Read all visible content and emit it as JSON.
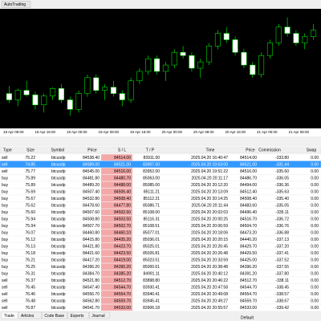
{
  "toolbar": {
    "button": "AutoTrading"
  },
  "chart": {
    "type": "candlestick",
    "ylim": [
      83800,
      85600
    ],
    "x_labels": [
      "18 Apr 08:00",
      "18 Apr 16:00",
      "19 Apr 00:00",
      "19 Apr 08:00",
      "19 Apr 16:00",
      "20 Apr 00:00",
      "20 Apr 08:00",
      "20 Apr 16:00",
      "21 Apr 00:00",
      "21 Apr 08:00"
    ],
    "candles": [
      [
        84300,
        84420,
        84150,
        84200
      ],
      [
        84200,
        84380,
        84100,
        84350
      ],
      [
        84350,
        84500,
        84250,
        84280
      ],
      [
        84280,
        84330,
        84050,
        84120
      ],
      [
        84120,
        84300,
        84000,
        84260
      ],
      [
        84260,
        84400,
        84200,
        84380
      ],
      [
        84380,
        84450,
        84150,
        84200
      ],
      [
        84200,
        84250,
        83950,
        84050
      ],
      [
        84050,
        84350,
        84000,
        84300
      ],
      [
        84300,
        84600,
        84250,
        84550
      ],
      [
        84550,
        84600,
        84300,
        84350
      ],
      [
        84350,
        84450,
        84200,
        84400
      ],
      [
        84400,
        84500,
        84250,
        84300
      ],
      [
        84300,
        84350,
        84100,
        84200
      ],
      [
        84200,
        84550,
        84150,
        84500
      ],
      [
        84500,
        84700,
        84450,
        84650
      ],
      [
        84650,
        84900,
        84600,
        84850
      ],
      [
        84850,
        84900,
        84600,
        84650
      ],
      [
        84650,
        84800,
        84500,
        84750
      ],
      [
        84750,
        85000,
        84700,
        84950
      ],
      [
        84950,
        85050,
        84850,
        84900
      ],
      [
        84900,
        84950,
        84650,
        84700
      ],
      [
        84700,
        84850,
        84550,
        84800
      ],
      [
        84800,
        85100,
        84750,
        85050
      ],
      [
        85050,
        85300,
        85000,
        85250
      ],
      [
        85250,
        85350,
        85100,
        85150
      ],
      [
        85150,
        85200,
        84900,
        84950
      ],
      [
        84950,
        85000,
        84700,
        84750
      ],
      [
        84750,
        84800,
        84550,
        84600
      ],
      [
        84600,
        84950,
        84550,
        84900
      ],
      [
        84900,
        85150,
        84850,
        85100
      ],
      [
        85100,
        85400,
        85050,
        85350
      ],
      [
        85350,
        85500,
        85200,
        85250
      ],
      [
        85250,
        85300,
        85050,
        85100
      ],
      [
        85100,
        85250,
        85000,
        85200
      ],
      [
        85200,
        85400,
        85150,
        85300
      ]
    ]
  },
  "table": {
    "columns": [
      "Type",
      "Size",
      "Symbol",
      "Price",
      "S / L",
      "T / P",
      "Time",
      "Price",
      "Commission",
      "Swap"
    ],
    "rows": [
      [
        "sell",
        "75.22",
        "btcusdp",
        "84538.40",
        "84514.00",
        "83911.00",
        "2025.04.20 16:40:47",
        "84514.00",
        "-333.80",
        "0.00"
      ],
      [
        "sell",
        "74.85",
        "btcusdp",
        "84589.00",
        "84521.00",
        "83907.00",
        "2025.04.20 19:53:00",
        "84521.00",
        "-331.44",
        "0.00"
      ],
      [
        "sell",
        "75.77",
        "btcusdp",
        "84545.00",
        "84516.00",
        "83952.00",
        "2025.04.20 19:51:22",
        "84516.00",
        "-335.60",
        "0.00"
      ],
      [
        "buy",
        "75.89",
        "btcusdp",
        "84481.80",
        "84480.70",
        "85063.00",
        "2025.04.20 20:11:17",
        "84486.70",
        "-336.05",
        "0.00"
      ],
      [
        "buy",
        "75.89",
        "btcusdp",
        "84489.20",
        "84488.00",
        "85085.00",
        "2025.04.20 20:12:20",
        "84494.00",
        "-336.36",
        "0.00"
      ],
      [
        "buy",
        "75.69",
        "btcusdp",
        "84507.40",
        "84506.40",
        "85111.21",
        "2025.04.20 20:13:09",
        "84512.40",
        "-335.63",
        "0.00"
      ],
      [
        "buy",
        "75.67",
        "btcusdp",
        "84532.80",
        "84508.40",
        "85112.21",
        "2025.04.20 20:14:25",
        "84508.40",
        "-335.40",
        "0.00"
      ],
      [
        "buy",
        "75.62",
        "btcusdp",
        "84478.60",
        "84477.80",
        "85086.71",
        "2025.04.20 20:11:44",
        "84483.60",
        "-335.05",
        "0.00"
      ],
      [
        "buy",
        "75.60",
        "btcusdp",
        "84507.60",
        "84502.60",
        "85108.00",
        "2025.04.20 20:02:03",
        "84496.40",
        "-335.11",
        "0.00"
      ],
      [
        "buy",
        "75.94",
        "btcusdp",
        "84508.80",
        "84503.50",
        "85116.31",
        "2025.04.20 20:00:25",
        "84516.70",
        "-336.72",
        "0.00"
      ],
      [
        "buy",
        "75.94",
        "btcusdp",
        "84507.70",
        "84502.70",
        "85108.51",
        "2025.04.20 20:06:59",
        "84504.70",
        "-336.76",
        "0.00"
      ],
      [
        "buy",
        "76.07",
        "btcusdp",
        "84460.80",
        "84460.10",
        "85077.01",
        "2025.04.20 20:18:06",
        "84473.20",
        "-336.88",
        "0.00"
      ],
      [
        "buy",
        "76.12",
        "btcusdp",
        "84415.80",
        "84435.20",
        "85036.01",
        "2025.04.20 20:20:15",
        "84440.20",
        "-337.13",
        "0.00"
      ],
      [
        "buy",
        "76.13",
        "btcusdp",
        "84421.80",
        "84423.70",
        "85025.01",
        "2025.04.20 20:26:45",
        "84429.70",
        "-337.20",
        "0.00"
      ],
      [
        "buy",
        "76.18",
        "btcusdp",
        "84421.60",
        "84423.50",
        "85026.81",
        "2025.04.20 20:26:48",
        "84429.50",
        "-337.41",
        "0.00"
      ],
      [
        "buy",
        "76.21",
        "btcusdp",
        "84417.20",
        "84419.00",
        "85023.51",
        "2025.04.20 20:33:59",
        "84425.00",
        "-337.52",
        "0.00"
      ],
      [
        "buy",
        "76.25",
        "btcusdp",
        "84396.20",
        "84390.20",
        "85000.61",
        "2025.04.20 20:38:48",
        "84396.20",
        "-337.55",
        "0.00"
      ],
      [
        "buy",
        "76.31",
        "btcusdp",
        "84384.70",
        "84385.20",
        "84991.11",
        "2025.04.20 20:40:12",
        "84391.20",
        "-337.80",
        "0.00"
      ],
      [
        "sell",
        "76.37",
        "btcusdp",
        "84521.80",
        "84512.70",
        "83898.80",
        "2025.04.20 20:46:22",
        "84512.70",
        "-338.11",
        "0.00"
      ],
      [
        "sell",
        "76.45",
        "btcusdp",
        "84547.40",
        "84544.70",
        "83930.41",
        "2025.04.20 20:47:58",
        "84544.70",
        "-338.45",
        "0.00"
      ],
      [
        "sell",
        "76.46",
        "btcusdp",
        "84556.70",
        "84554.70",
        "83940.41",
        "2025.04.20 20:49:08",
        "84554.70",
        "-338.57",
        "0.00"
      ],
      [
        "sell",
        "76.48",
        "btcusdp",
        "84562.80",
        "84559.70",
        "83945.41",
        "2025.04.20 20:49:27",
        "84559.70",
        "-338.67",
        "0.00"
      ],
      [
        "sell",
        "76.87",
        "btcusdp",
        "84541.70",
        "84533.00",
        "83906.18",
        "2025.04.20 20:55:57",
        "84533.00",
        "-339.42",
        "0.00"
      ]
    ]
  },
  "tabs": [
    "Trade",
    "Articles",
    "Code Base",
    "Experts",
    "Journal"
  ],
  "status": "Default"
}
